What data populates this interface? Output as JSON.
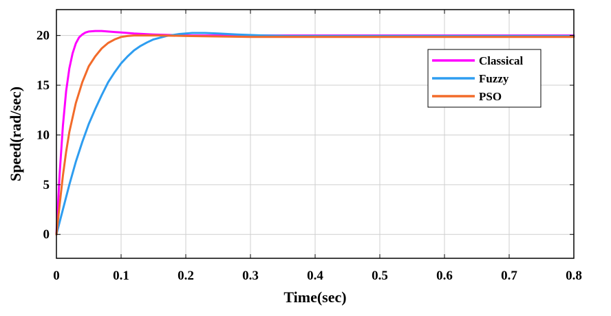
{
  "chart_data": {
    "type": "line",
    "title": "",
    "xlabel": "Time(sec)",
    "ylabel": "Speed(rad/sec)",
    "xlim": [
      0,
      0.8
    ],
    "ylim": [
      -2.4,
      22.6
    ],
    "xticks": [
      0,
      0.1,
      0.2,
      0.3,
      0.4,
      0.5,
      0.6,
      0.7,
      0.8
    ],
    "xtick_labels": [
      "0",
      "0.1",
      "0.2",
      "0.3",
      "0.4",
      "0.5",
      "0.6",
      "0.7",
      "0.8"
    ],
    "yticks": [
      0,
      5,
      10,
      15,
      20
    ],
    "ytick_labels": [
      "0",
      "5",
      "10",
      "15",
      "20"
    ],
    "grid": true,
    "legend": "top-right",
    "series": [
      {
        "name": "Classical",
        "color": "#ff00ff",
        "x": [
          0,
          0.005,
          0.01,
          0.015,
          0.02,
          0.025,
          0.03,
          0.035,
          0.04,
          0.045,
          0.05,
          0.06,
          0.07,
          0.08,
          0.09,
          0.1,
          0.12,
          0.15,
          0.2,
          0.3,
          0.5,
          0.8
        ],
        "y": [
          0,
          6.1,
          10.9,
          14.4,
          16.7,
          18.2,
          19.2,
          19.8,
          20.1,
          20.3,
          20.4,
          20.45,
          20.45,
          20.4,
          20.35,
          20.3,
          20.2,
          20.1,
          20.0,
          20.0,
          20.0,
          20.0
        ]
      },
      {
        "name": "Fuzzy",
        "color": "#2e9df0",
        "x": [
          0,
          0.01,
          0.02,
          0.03,
          0.04,
          0.05,
          0.06,
          0.07,
          0.08,
          0.09,
          0.1,
          0.11,
          0.12,
          0.13,
          0.14,
          0.15,
          0.17,
          0.19,
          0.21,
          0.23,
          0.25,
          0.28,
          0.32,
          0.36,
          0.4,
          0.5,
          0.6,
          0.8
        ],
        "y": [
          0,
          2.5,
          5.0,
          7.3,
          9.3,
          11.1,
          12.6,
          14.0,
          15.3,
          16.3,
          17.2,
          17.9,
          18.5,
          18.95,
          19.3,
          19.6,
          19.95,
          20.15,
          20.25,
          20.25,
          20.2,
          20.1,
          20.0,
          19.95,
          19.95,
          19.95,
          19.95,
          19.95
        ]
      },
      {
        "name": "PSO",
        "color": "#f26b2a",
        "x": [
          0,
          0.005,
          0.01,
          0.015,
          0.02,
          0.03,
          0.04,
          0.05,
          0.06,
          0.07,
          0.08,
          0.09,
          0.1,
          0.11,
          0.12,
          0.14,
          0.16,
          0.2,
          0.3,
          0.5,
          0.8
        ],
        "y": [
          0,
          3.0,
          5.9,
          8.3,
          10.3,
          13.2,
          15.3,
          16.9,
          17.9,
          18.7,
          19.25,
          19.6,
          19.85,
          19.95,
          20.0,
          20.0,
          20.0,
          19.95,
          19.85,
          19.85,
          19.85
        ]
      }
    ]
  }
}
